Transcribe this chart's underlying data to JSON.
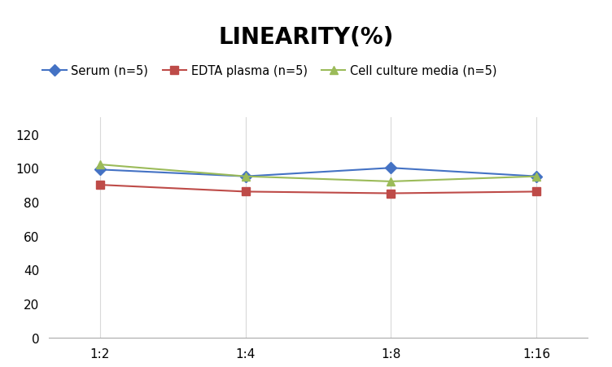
{
  "title": "LINEARITY(%)",
  "x_labels": [
    "1:2",
    "1:4",
    "1:8",
    "1:16"
  ],
  "x_positions": [
    0,
    1,
    2,
    3
  ],
  "series": [
    {
      "label": "Serum (n=5)",
      "values": [
        99,
        95,
        100,
        95
      ],
      "color": "#4472C4",
      "marker": "D",
      "linewidth": 1.5
    },
    {
      "label": "EDTA plasma (n=5)",
      "values": [
        90,
        86,
        85,
        86
      ],
      "color": "#BE4B48",
      "marker": "s",
      "linewidth": 1.5
    },
    {
      "label": "Cell culture media (n=5)",
      "values": [
        102,
        95,
        92,
        95
      ],
      "color": "#9BBB59",
      "marker": "^",
      "linewidth": 1.5
    }
  ],
  "ylim": [
    0,
    130
  ],
  "yticks": [
    0,
    20,
    40,
    60,
    80,
    100,
    120
  ],
  "title_fontsize": 20,
  "legend_fontsize": 10.5,
  "tick_fontsize": 11,
  "background_color": "#ffffff",
  "grid_color": "#d9d9d9"
}
